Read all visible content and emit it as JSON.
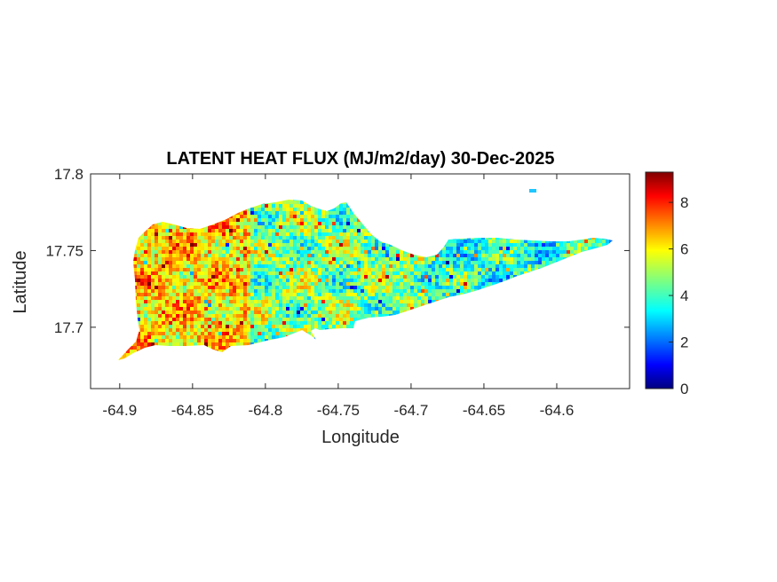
{
  "title": "LATENT HEAT FLUX (MJ/m2/day) 30-Dec-2025",
  "chart_data": {
    "type": "heatmap",
    "title": "LATENT HEAT FLUX (MJ/m2/day) 30-Dec-2025",
    "xlabel": "Longitude",
    "ylabel": "Latitude",
    "xlim": [
      -64.92,
      -64.55
    ],
    "ylim": [
      17.66,
      17.8
    ],
    "xticks": [
      -64.9,
      -64.85,
      -64.8,
      -64.75,
      -64.7,
      -64.65,
      -64.6
    ],
    "xtick_labels": [
      "-64.9",
      "-64.85",
      "-64.8",
      "-64.75",
      "-64.7",
      "-64.65",
      "-64.6"
    ],
    "yticks": [
      17.7,
      17.75,
      17.8
    ],
    "ytick_labels": [
      "17.7",
      "17.75",
      "17.8"
    ],
    "colorbar": {
      "colormap": "jet",
      "range": [
        0,
        9.3
      ],
      "ticks": [
        0,
        2,
        4,
        6,
        8
      ],
      "tick_labels": [
        "0",
        "2",
        "4",
        "6",
        "8"
      ]
    },
    "region_mean": {
      "west": 6.2,
      "central": 4.6,
      "east": 3.9
    },
    "grid": false
  }
}
